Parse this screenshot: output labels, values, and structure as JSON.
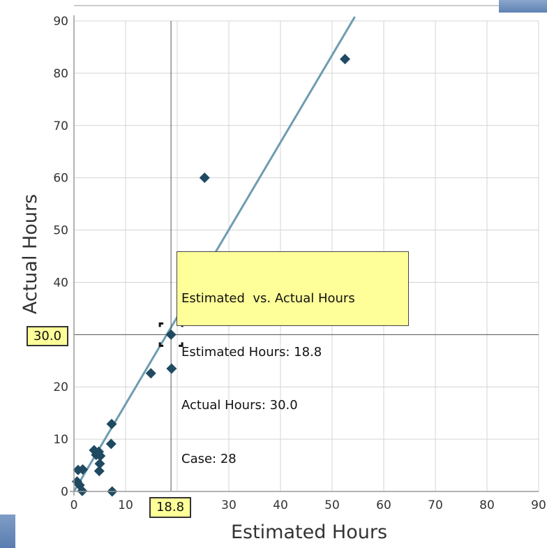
{
  "chart_data": {
    "type": "scatter",
    "xlabel": "Estimated Hours",
    "ylabel": "Actual Hours",
    "xlim": [
      0,
      90
    ],
    "ylim": [
      0,
      90
    ],
    "x_ticks": [
      "0",
      "10",
      "20",
      "30",
      "40",
      "50",
      "60",
      "70",
      "80",
      "90"
    ],
    "y_ticks": [
      "0",
      "10",
      "20",
      "30",
      "40",
      "50",
      "60",
      "70",
      "80",
      "90"
    ],
    "grid": true,
    "series": [
      {
        "points": [
          {
            "x": 52.5,
            "y": 82.7
          },
          {
            "x": 25.3,
            "y": 60.0
          },
          {
            "x": 18.8,
            "y": 30.0
          },
          {
            "x": 14.9,
            "y": 22.6
          },
          {
            "x": 18.9,
            "y": 23.5
          },
          {
            "x": 7.3,
            "y": 12.9
          },
          {
            "x": 7.2,
            "y": 9.1
          },
          {
            "x": 3.9,
            "y": 7.9
          },
          {
            "x": 4.3,
            "y": 7.0
          },
          {
            "x": 4.8,
            "y": 7.6
          },
          {
            "x": 5.1,
            "y": 6.8
          },
          {
            "x": 5.0,
            "y": 5.3
          },
          {
            "x": 4.9,
            "y": 3.9
          },
          {
            "x": 0.8,
            "y": 4.1
          },
          {
            "x": 1.7,
            "y": 4.2
          },
          {
            "x": 0.6,
            "y": 1.9
          },
          {
            "x": 1.1,
            "y": 1.2
          },
          {
            "x": 1.6,
            "y": 0.1
          },
          {
            "x": 7.4,
            "y": 0.0
          }
        ]
      }
    ],
    "trend_line": {
      "from": {
        "x": 0,
        "y": 0
      },
      "to": {
        "x": 54.4,
        "y": 90.8
      }
    },
    "crosshair": {
      "x": 18.8,
      "y": 30.0,
      "x_label": "18.8",
      "y_label": "30.0"
    },
    "tooltip": {
      "title": "Estimated  vs. Actual Hours",
      "line1": "Estimated Hours: 18.8",
      "line2": "Actual Hours: 30.0",
      "line3": "Case: 28"
    },
    "colors": {
      "marker": "#1f4a61",
      "trend": "#6e9cb0",
      "grid": "#d4d4d4",
      "crosshair": "#555555",
      "tooltip_bg": "#ffff99"
    }
  }
}
